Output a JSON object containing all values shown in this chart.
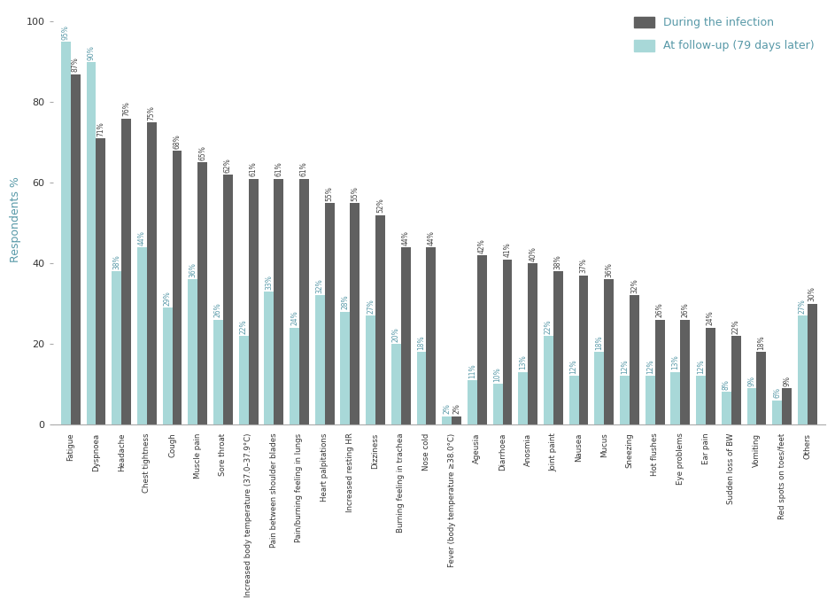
{
  "categories": [
    "Fatigue",
    "Dyspnoea",
    "Headache",
    "Chest tightness",
    "Cough",
    "Muscle pain",
    "Sore throat",
    "Increased body temperature (37.0–37.9°C)",
    "Pain between shoulder blades",
    "Pain/burning feeling in lungs",
    "Heart palpitations",
    "Increased resting HR",
    "Dizziness",
    "Burning feeling in trachea",
    "Nose cold",
    "Fever (body temperature ≥38.0°C)",
    "Ageusia",
    "Diarrhoea",
    "Anosmia",
    "Joint paint",
    "Nausea",
    "Mucus",
    "Sneezing",
    "Hot flushes",
    "Eye problems",
    "Ear pain",
    "Sudden loss of BW",
    "Vomiting",
    "Red spots on toes/feet",
    "Others"
  ],
  "during_infection": [
    87,
    71,
    76,
    75,
    68,
    65,
    62,
    61,
    61,
    61,
    55,
    55,
    52,
    44,
    44,
    2,
    42,
    41,
    40,
    38,
    37,
    36,
    32,
    26,
    26,
    24,
    22,
    18,
    9,
    30
  ],
  "at_followup": [
    95,
    90,
    38,
    44,
    29,
    36,
    26,
    22,
    33,
    24,
    32,
    28,
    27,
    20,
    18,
    2,
    11,
    10,
    13,
    22,
    12,
    18,
    12,
    12,
    13,
    12,
    8,
    9,
    6,
    27
  ],
  "during_labels": [
    "87%",
    "71%",
    "76%",
    "75%",
    "68%",
    "65%",
    "62%",
    "61%",
    "61%",
    "61%",
    "55%",
    "55%",
    "52%",
    "44%",
    "44%",
    "2%",
    "42%",
    "41%",
    "40%",
    "38%",
    "37%",
    "36%",
    "32%",
    "26%",
    "26%",
    "24%",
    "22%",
    "18%",
    "9%",
    "30%"
  ],
  "followup_labels": [
    "95%",
    "90%",
    "38%",
    "44%",
    "29%",
    "36%",
    "26%",
    "22%",
    "33%",
    "24%",
    "32%",
    "28%",
    "27%",
    "20%",
    "18%",
    "2%",
    "11%",
    "10%",
    "13%",
    "22%",
    "12%",
    "18%",
    "12%",
    "12%",
    "13%",
    "12%",
    "8%",
    "9%",
    "6%",
    "27%"
  ],
  "color_during": "#606060",
  "color_followup": "#a8d8d8",
  "ylabel": "Respondents %",
  "ylabel_color": "#5899a8",
  "legend_during": "During the infection",
  "legend_followup": "At follow-up (79 days later)",
  "ylim": [
    0,
    102
  ],
  "yticks": [
    0,
    20,
    40,
    60,
    80,
    100
  ],
  "bar_width": 0.38,
  "label_fontsize": 5.5,
  "axis_label_fontsize": 9,
  "tick_fontsize": 8,
  "legend_fontsize": 9,
  "fig_width": 9.43,
  "fig_height": 6.85
}
